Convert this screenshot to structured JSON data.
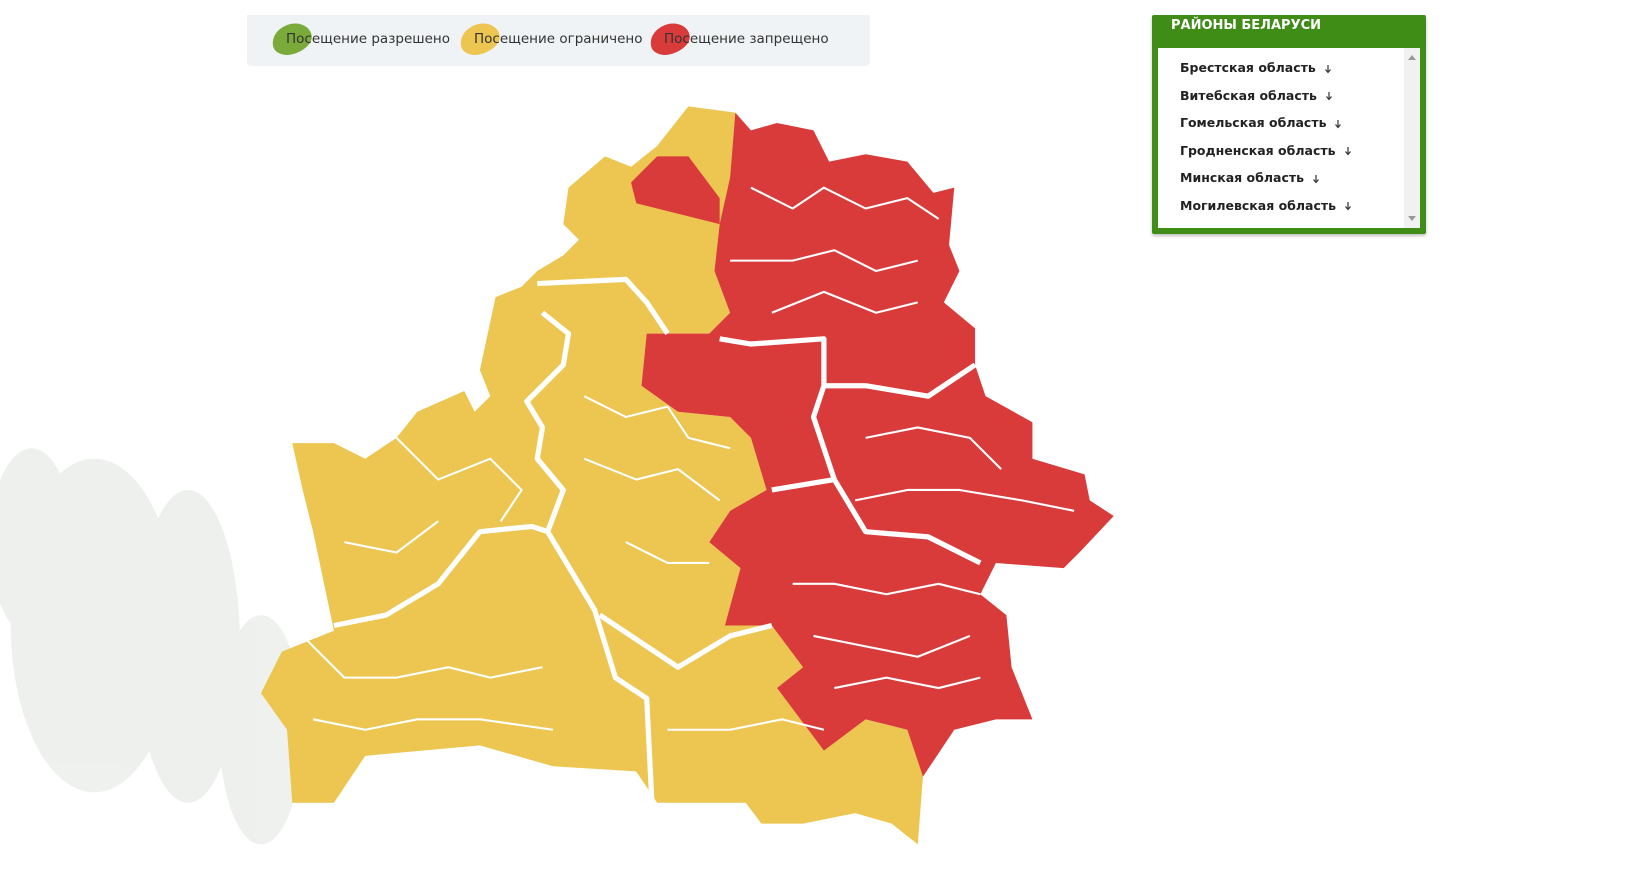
{
  "legend": {
    "items": [
      {
        "label": "Посещение разрешено",
        "color": "#7aab3a"
      },
      {
        "label": "Посещение ограничено",
        "color": "#ecc650"
      },
      {
        "label": "Посещение запрещено",
        "color": "#d93a3a"
      }
    ]
  },
  "panel": {
    "title": "РАЙОНЫ БЕЛАРУСИ",
    "regions": [
      "Брестская область",
      "Витебская область",
      "Гомельская область",
      "Гродненская область",
      "Минская область",
      "Могилевская область"
    ]
  }
}
